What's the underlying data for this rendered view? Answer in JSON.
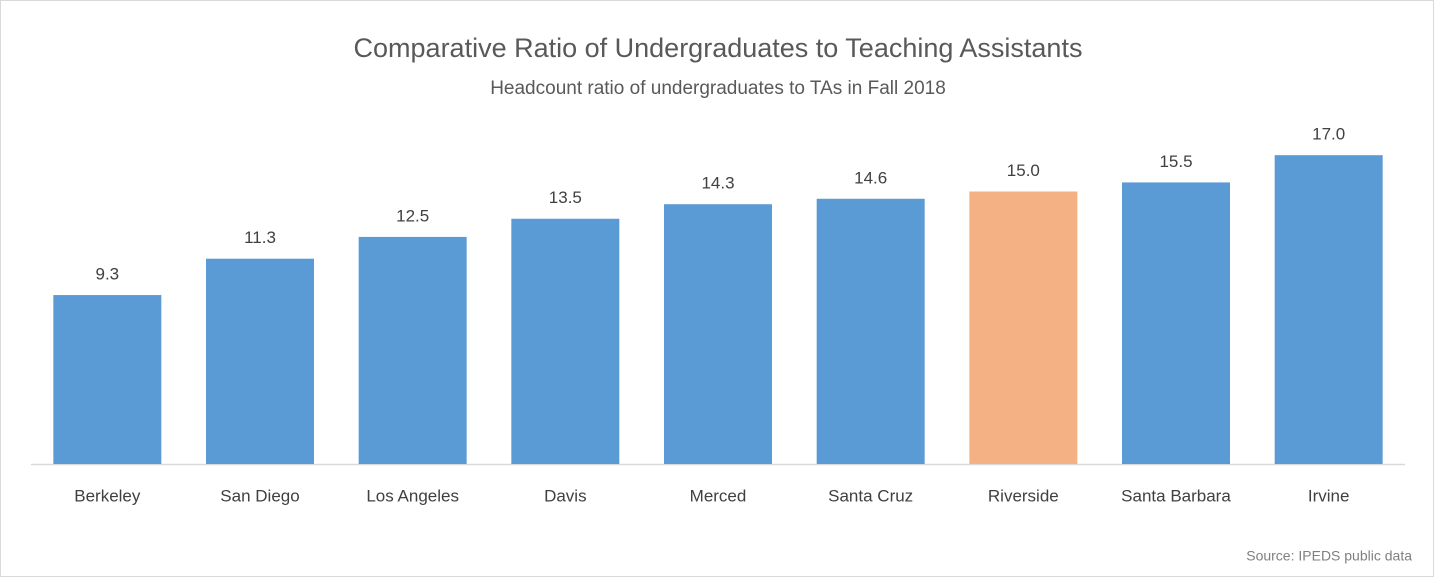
{
  "chart_data": {
    "type": "bar",
    "title": "Comparative Ratio of Undergraduates to Teaching Assistants",
    "subtitle": "Headcount ratio of undergraduates to TAs in Fall 2018",
    "source": "Source: IPEDS public data",
    "categories": [
      "Berkeley",
      "San Diego",
      "Los Angeles",
      "Davis",
      "Merced",
      "Santa Cruz",
      "Riverside",
      "Santa Barbara",
      "Irvine"
    ],
    "values": [
      9.3,
      11.3,
      12.5,
      13.5,
      14.3,
      14.6,
      15.0,
      15.5,
      17.0
    ],
    "value_labels": [
      "9.3",
      "11.3",
      "12.5",
      "13.5",
      "14.3",
      "14.6",
      "15.0",
      "15.5",
      "17.0"
    ],
    "colors": [
      "#5b9bd5",
      "#5b9bd5",
      "#5b9bd5",
      "#5b9bd5",
      "#5b9bd5",
      "#5b9bd5",
      "#f4b183",
      "#5b9bd5",
      "#5b9bd5"
    ],
    "ylim": [
      0,
      18
    ],
    "grid": false
  }
}
